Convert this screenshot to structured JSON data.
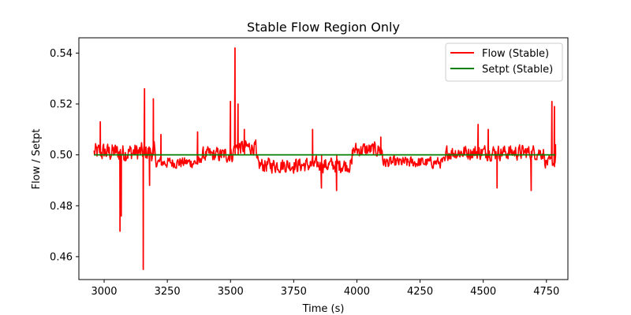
{
  "chart_data": {
    "type": "line",
    "title": "Stable Flow Region Only",
    "xlabel": "Time (s)",
    "ylabel": "Flow / Setpt",
    "xlim": [
      2900,
      4835
    ],
    "ylim": [
      0.451,
      0.546
    ],
    "x_ticks": [
      3000,
      3250,
      3500,
      3750,
      4000,
      4250,
      4500,
      4750
    ],
    "y_ticks": [
      0.46,
      0.48,
      0.5,
      0.52,
      0.54
    ],
    "x_tick_labels": [
      "3000",
      "3250",
      "3500",
      "3750",
      "4000",
      "4250",
      "4500",
      "4750"
    ],
    "y_tick_labels": [
      "0.46",
      "0.48",
      "0.50",
      "0.52",
      "0.54"
    ],
    "grid": false,
    "legend_position": "top-right",
    "series": [
      {
        "name": "Flow (Stable)",
        "color": "#ff0000",
        "style": "noisy",
        "x_range": [
          2960,
          4785
        ],
        "baseline": 0.5,
        "noise": 0.004,
        "segments": [
          {
            "x": [
              2960,
              3200
            ],
            "level": 0.501,
            "noise": 0.005
          },
          {
            "x": [
              3200,
              3380
            ],
            "level": 0.497,
            "noise": 0.003
          },
          {
            "x": [
              3380,
              3510
            ],
            "level": 0.5,
            "noise": 0.004
          },
          {
            "x": [
              3510,
              3600
            ],
            "level": 0.503,
            "noise": 0.004
          },
          {
            "x": [
              3600,
              3980
            ],
            "level": 0.496,
            "noise": 0.004
          },
          {
            "x": [
              3980,
              4100
            ],
            "level": 0.502,
            "noise": 0.004
          },
          {
            "x": [
              4100,
              4350
            ],
            "level": 0.497,
            "noise": 0.003
          },
          {
            "x": [
              4350,
              4740
            ],
            "level": 0.501,
            "noise": 0.004
          },
          {
            "x": [
              4740,
              4785
            ],
            "level": 0.497,
            "noise": 0.003
          }
        ],
        "spikes": [
          {
            "x": 2985,
            "y": 0.513
          },
          {
            "x": 3063,
            "y": 0.47
          },
          {
            "x": 3068,
            "y": 0.476
          },
          {
            "x": 3155,
            "y": 0.455
          },
          {
            "x": 3160,
            "y": 0.526
          },
          {
            "x": 3180,
            "y": 0.488
          },
          {
            "x": 3195,
            "y": 0.522
          },
          {
            "x": 3225,
            "y": 0.508
          },
          {
            "x": 3370,
            "y": 0.509
          },
          {
            "x": 3500,
            "y": 0.521
          },
          {
            "x": 3518,
            "y": 0.542
          },
          {
            "x": 3530,
            "y": 0.52
          },
          {
            "x": 3555,
            "y": 0.51
          },
          {
            "x": 3825,
            "y": 0.51
          },
          {
            "x": 3860,
            "y": 0.487
          },
          {
            "x": 3920,
            "y": 0.486
          },
          {
            "x": 4095,
            "y": 0.507
          },
          {
            "x": 4480,
            "y": 0.512
          },
          {
            "x": 4520,
            "y": 0.51
          },
          {
            "x": 4555,
            "y": 0.487
          },
          {
            "x": 4690,
            "y": 0.486
          },
          {
            "x": 4772,
            "y": 0.521
          },
          {
            "x": 4782,
            "y": 0.519
          },
          {
            "x": 4786,
            "y": 0.504
          }
        ]
      },
      {
        "name": "Setpt (Stable)",
        "color": "#008000",
        "style": "flat",
        "x": [
          2960,
          4785
        ],
        "y": [
          0.5,
          0.5
        ]
      }
    ]
  }
}
